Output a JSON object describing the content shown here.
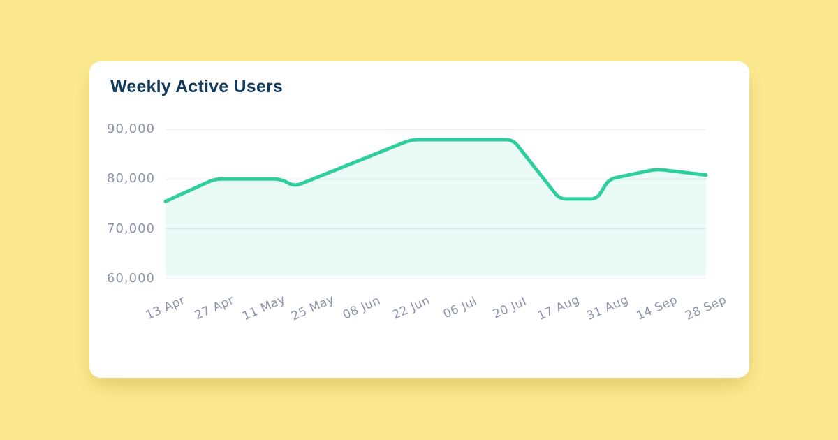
{
  "page": {
    "background_color": "#FCE98F"
  },
  "card": {
    "title": "Weekly Active Users",
    "title_color": "#113A5C",
    "background_color": "#FFFFFF"
  },
  "chart_data": {
    "type": "area",
    "title": "Weekly Active Users",
    "legend": "none",
    "grid": "horizontal-only",
    "y_min": 60000,
    "y_max": 90000,
    "x_tick_labels": [
      "13 Apr",
      "27 Apr",
      "11 May",
      "25 May",
      "08 Jun",
      "22 Jun",
      "06 Jul",
      "20 Jul",
      "17 Aug",
      "31 Aug",
      "14 Sep",
      "28 Sep"
    ],
    "y_ticks": [
      {
        "value": 90000,
        "label": "90,000"
      },
      {
        "value": 80000,
        "label": "80,000"
      },
      {
        "value": 70000,
        "label": "70,000"
      },
      {
        "value": 60000,
        "label": "60,000"
      }
    ],
    "series": [
      {
        "name": "Weekly Active Users",
        "points": [
          {
            "date": "13 Apr",
            "t": 0,
            "value": 75500
          },
          {
            "date": "27 Apr",
            "t": 1,
            "value": 80000
          },
          {
            "date": "11 May",
            "t": 2.35,
            "value": 80000
          },
          {
            "date": "18 May",
            "t": 2.62,
            "value": 78500
          },
          {
            "date": "22 Jun",
            "t": 5,
            "value": 87900
          },
          {
            "date": "20 Jul",
            "t": 7.07,
            "value": 87900
          },
          {
            "date": "17 Aug",
            "t": 8.02,
            "value": 76000
          },
          {
            "date": "25 Aug",
            "t": 8.78,
            "value": 76000
          },
          {
            "date": "31 Aug",
            "t": 9.03,
            "value": 80000
          },
          {
            "date": "14 Sep",
            "t": 10,
            "value": 82000
          },
          {
            "date": "28 Sep",
            "t": 11,
            "value": 80800
          }
        ]
      }
    ],
    "colors": {
      "line": "#2FCE9D",
      "fill": "rgba(47,206,157,0.10)",
      "grid": "#E8ECF5",
      "axis_label": "#8B93A7"
    }
  }
}
